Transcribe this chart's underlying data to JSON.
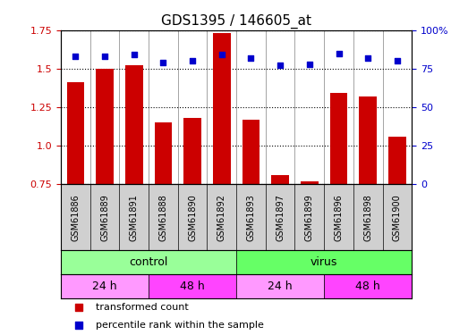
{
  "title": "GDS1395 / 146605_at",
  "samples": [
    "GSM61886",
    "GSM61889",
    "GSM61891",
    "GSM61888",
    "GSM61890",
    "GSM61892",
    "GSM61893",
    "GSM61897",
    "GSM61899",
    "GSM61896",
    "GSM61898",
    "GSM61900"
  ],
  "transformed_count": [
    1.41,
    1.5,
    1.52,
    1.15,
    1.18,
    1.73,
    1.17,
    0.81,
    0.77,
    1.34,
    1.32,
    1.06
  ],
  "percentile_rank": [
    83,
    83,
    84,
    79,
    80,
    84,
    82,
    77,
    78,
    85,
    82,
    80
  ],
  "bar_color": "#cc0000",
  "dot_color": "#0000cc",
  "ylim_left": [
    0.75,
    1.75
  ],
  "ylim_right": [
    0,
    100
  ],
  "yticks_left": [
    0.75,
    1.0,
    1.25,
    1.5,
    1.75
  ],
  "yticks_right": [
    0,
    25,
    50,
    75,
    100
  ],
  "grid_y": [
    0.75,
    1.0,
    1.25,
    1.5,
    1.75
  ],
  "infection_groups": [
    {
      "label": "control",
      "start": 0,
      "end": 6,
      "color": "#99ff99"
    },
    {
      "label": "virus",
      "start": 6,
      "end": 12,
      "color": "#66ff66"
    }
  ],
  "time_groups": [
    {
      "label": "24 h",
      "start": 0,
      "end": 3,
      "color": "#ff99ff"
    },
    {
      "label": "48 h",
      "start": 3,
      "end": 6,
      "color": "#ff44ff"
    },
    {
      "label": "24 h",
      "start": 6,
      "end": 9,
      "color": "#ff99ff"
    },
    {
      "label": "48 h",
      "start": 9,
      "end": 12,
      "color": "#ff44ff"
    }
  ],
  "legend_items": [
    {
      "label": "transformed count",
      "color": "#cc0000",
      "marker": "s"
    },
    {
      "label": "percentile rank within the sample",
      "color": "#0000cc",
      "marker": "s"
    }
  ],
  "background_color": "#ffffff",
  "plot_bg": "#ffffff",
  "xlabel_color": "#cc0000",
  "ylabel_right_color": "#0000cc"
}
